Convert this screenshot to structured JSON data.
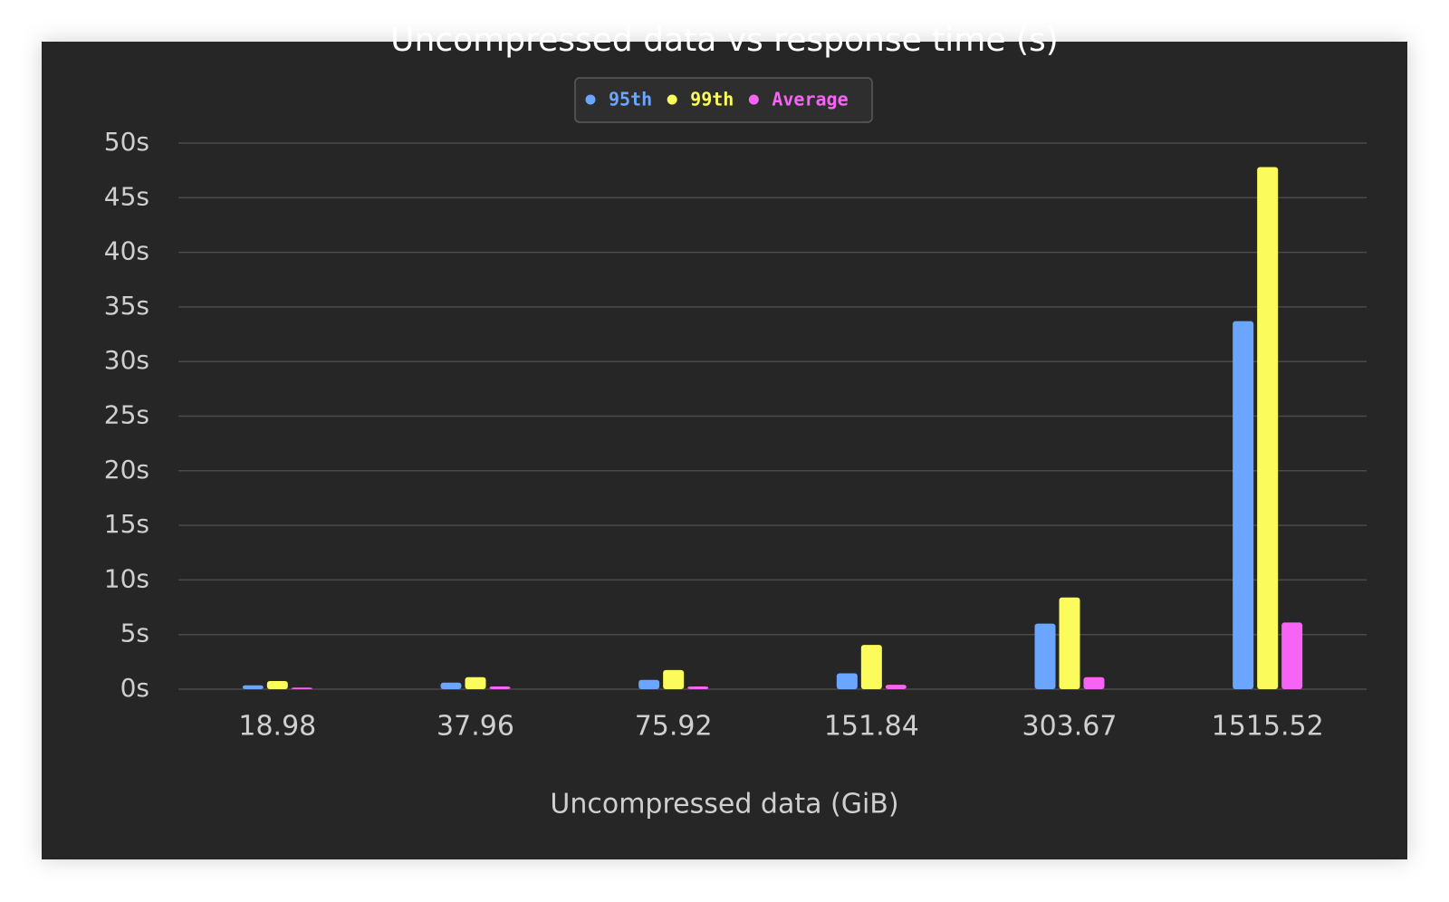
{
  "chart_data": {
    "type": "bar",
    "title": "Uncompressed data vs response time (s)",
    "x_label": "Uncompressed data (GiB)",
    "categories": [
      "18.98",
      "37.96",
      "75.92",
      "151.84",
      "303.67",
      "1515.52"
    ],
    "series": [
      {
        "name": "95th",
        "color": "#6aa5ff",
        "values": [
          0.35,
          0.6,
          0.85,
          1.45,
          6.0,
          33.7
        ]
      },
      {
        "name": "99th",
        "color": "#fbfb5b",
        "values": [
          0.75,
          1.1,
          1.75,
          4.05,
          8.4,
          47.8
        ]
      },
      {
        "name": "Average",
        "color": "#f764f5",
        "values": [
          0.15,
          0.25,
          0.25,
          0.4,
          1.1,
          6.1
        ]
      }
    ],
    "ylim": [
      0,
      50
    ],
    "yticks": [
      {
        "value": 0,
        "label": "0s"
      },
      {
        "value": 5,
        "label": "5s"
      },
      {
        "value": 10,
        "label": "10s"
      },
      {
        "value": 15,
        "label": "15s"
      },
      {
        "value": 20,
        "label": "20s"
      },
      {
        "value": 25,
        "label": "25s"
      },
      {
        "value": 30,
        "label": "30s"
      },
      {
        "value": 35,
        "label": "35s"
      },
      {
        "value": 40,
        "label": "40s"
      },
      {
        "value": 45,
        "label": "45s"
      },
      {
        "value": 50,
        "label": "50s"
      }
    ],
    "grid": true
  }
}
